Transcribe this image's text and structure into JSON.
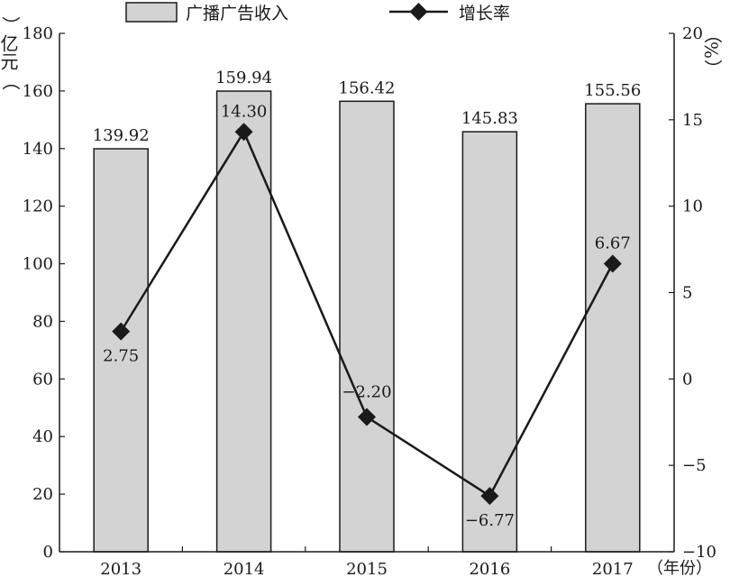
{
  "chart_data": {
    "type": "bar",
    "categories": [
      "2013",
      "2014",
      "2015",
      "2016",
      "2017"
    ],
    "series": [
      {
        "name": "广播广告收入",
        "type": "bar",
        "axis": "left",
        "values": [
          139.92,
          159.94,
          156.42,
          145.83,
          155.56
        ],
        "labels": [
          "139.92",
          "159.94",
          "156.42",
          "145.83",
          "155.56"
        ]
      },
      {
        "name": "增长率",
        "type": "line",
        "axis": "right",
        "marker": "diamond",
        "values": [
          2.75,
          14.3,
          -2.2,
          -6.77,
          6.67
        ],
        "labels": [
          "2.75",
          "14.30",
          "−2.20",
          "−6.77",
          "6.67"
        ]
      }
    ],
    "y_left": {
      "unit": "亿元",
      "range": [
        0,
        180
      ],
      "ticks": [
        "0",
        "20",
        "40",
        "60",
        "80",
        "100",
        "120",
        "140",
        "160",
        "180"
      ]
    },
    "y_right": {
      "unit": "%",
      "range": [
        -10,
        20
      ],
      "ticks": [
        "−10",
        "−5",
        "0",
        "5",
        "10",
        "15",
        "20"
      ]
    },
    "x_unit": "年份",
    "legend_position": "top",
    "grid": false,
    "colors": {
      "bar_fill": "#d3d3d3",
      "bar_stroke": "#1a1a1a",
      "line": "#1a1a1a"
    }
  }
}
